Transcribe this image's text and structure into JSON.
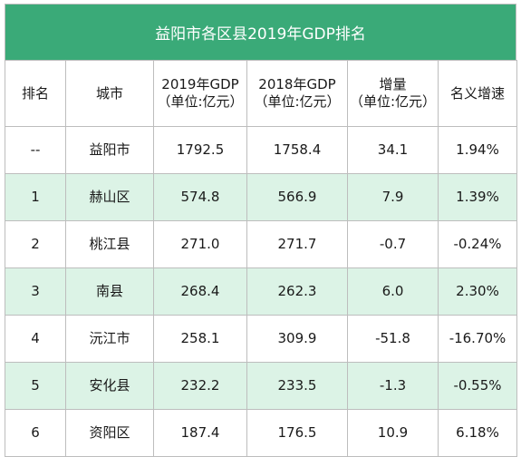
{
  "title": "益阳市各区县2019年GDP排名",
  "headers": {
    "rank": "排名",
    "city": "城市",
    "gdp2019_line1": "2019年GDP",
    "gdp2019_line2": "（单位:亿元）",
    "gdp2018_line1": "2018年GDP",
    "gdp2018_line2": "（单位:亿元）",
    "increase_line1": "增量",
    "increase_line2": "（单位:亿元）",
    "growth": "名义增速"
  },
  "rows": [
    {
      "rank": "--",
      "city": "益阳市",
      "gdp2019": "1792.5",
      "gdp2018": "1758.4",
      "increase": "34.1",
      "growth": "1.94%"
    },
    {
      "rank": "1",
      "city": "赫山区",
      "gdp2019": "574.8",
      "gdp2018": "566.9",
      "increase": "7.9",
      "growth": "1.39%"
    },
    {
      "rank": "2",
      "city": "桃江县",
      "gdp2019": "271.0",
      "gdp2018": "271.7",
      "increase": "-0.7",
      "growth": "-0.24%"
    },
    {
      "rank": "3",
      "city": "南县",
      "gdp2019": "268.4",
      "gdp2018": "262.3",
      "increase": "6.0",
      "growth": "2.30%"
    },
    {
      "rank": "4",
      "city": "沅江市",
      "gdp2019": "258.1",
      "gdp2018": "309.9",
      "increase": "-51.8",
      "growth": "-16.70%"
    },
    {
      "rank": "5",
      "city": "安化县",
      "gdp2019": "232.2",
      "gdp2018": "233.5",
      "increase": "-1.3",
      "growth": "-0.55%"
    },
    {
      "rank": "6",
      "city": "资阳区",
      "gdp2019": "187.4",
      "gdp2018": "176.5",
      "increase": "10.9",
      "growth": "6.18%"
    }
  ],
  "colors": {
    "title_bg": "#3aaa78",
    "stripe_bg": "#dcf3e6",
    "border": "#bdbdbd"
  }
}
